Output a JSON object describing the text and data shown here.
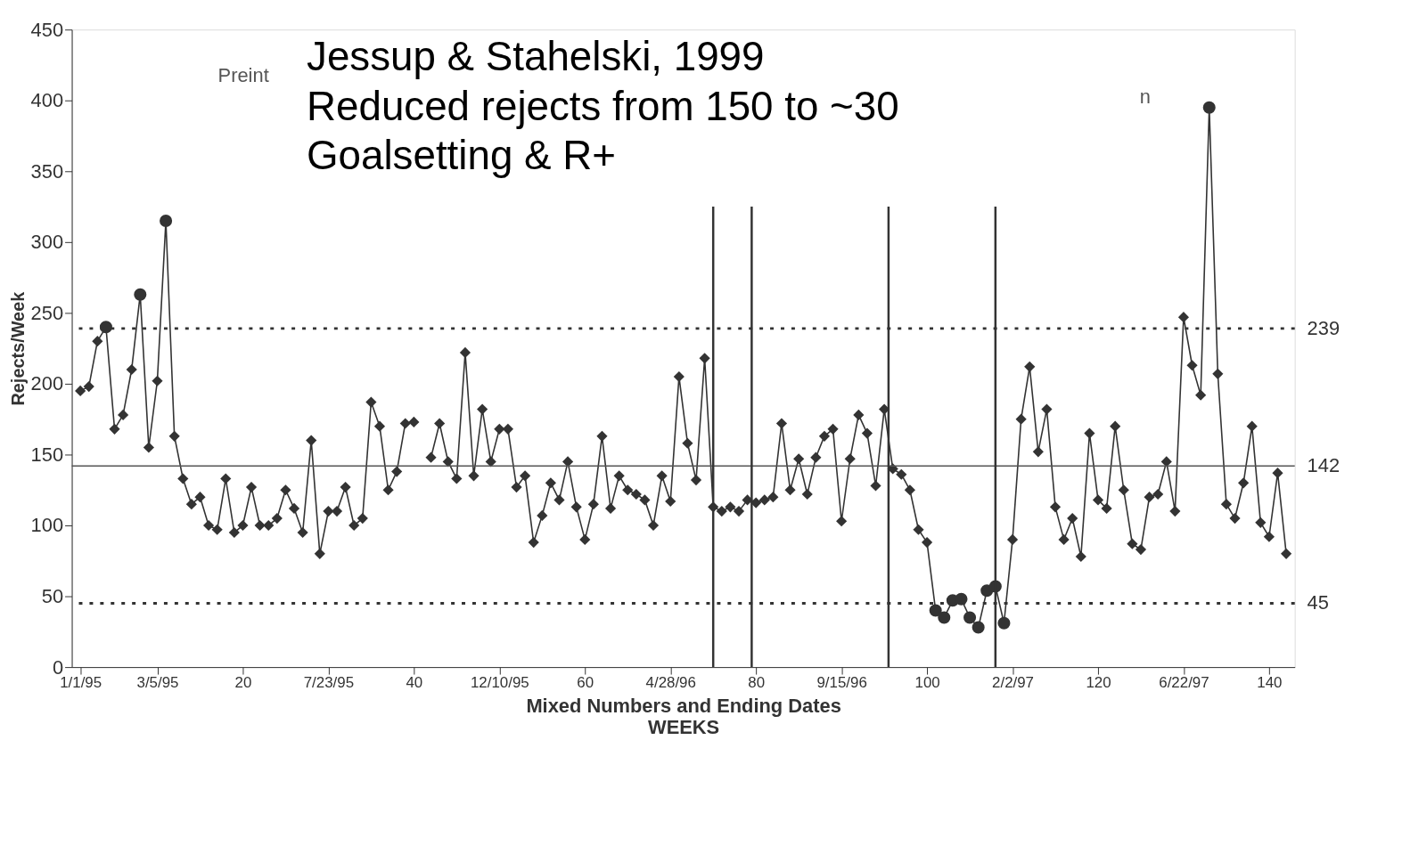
{
  "chart_data": {
    "type": "line",
    "xlabel": "Mixed Numbers and Ending Dates\nWEEKS",
    "ylabel": "Rejects/Week",
    "annotations": [
      "Jessup & Stahelski, 1999",
      "Reduced rejects from 150 to ~30",
      "Goalsetting & R+",
      "Preint",
      "n"
    ],
    "x": [
      1,
      2,
      3,
      4,
      5,
      6,
      7,
      8,
      9,
      10,
      11,
      12,
      13,
      14,
      15,
      16,
      17,
      18,
      19,
      20,
      21,
      22,
      23,
      24,
      25,
      26,
      27,
      28,
      29,
      30,
      31,
      32,
      33,
      34,
      35,
      36,
      37,
      38,
      39,
      40,
      41,
      42,
      43,
      44,
      45,
      46,
      47,
      48,
      49,
      50,
      51,
      52,
      53,
      54,
      55,
      56,
      57,
      58,
      59,
      60,
      61,
      62,
      63,
      64,
      65,
      66,
      67,
      68,
      69,
      70,
      71,
      72,
      73,
      74,
      75,
      76,
      77,
      78,
      79,
      80,
      81,
      82,
      83,
      84,
      85,
      86,
      87,
      88,
      89,
      90,
      91,
      92,
      93,
      94,
      95,
      96,
      97,
      98,
      99,
      100,
      101,
      102,
      103,
      104,
      105,
      106,
      107,
      108,
      109,
      110,
      111,
      112,
      113,
      114,
      115,
      116,
      117,
      118,
      119,
      120,
      121,
      122,
      123,
      124,
      125,
      126,
      127,
      128,
      129,
      130,
      131,
      132,
      133,
      134,
      135,
      136,
      137,
      138,
      139,
      140,
      141,
      142
    ],
    "series": [
      {
        "marker": "none",
        "color": "#333333",
        "values": [
          195,
          198,
          230,
          240,
          168,
          178,
          210,
          263,
          155,
          202,
          315,
          163,
          133,
          115,
          120,
          100,
          97,
          133,
          95,
          100,
          127,
          100,
          100,
          105,
          125,
          112,
          95,
          160,
          80,
          110,
          110,
          127,
          100,
          105,
          187,
          170,
          125,
          138,
          172,
          173,
          null,
          148,
          172,
          145,
          133,
          222,
          135,
          182,
          145,
          168,
          168,
          127,
          135,
          88,
          107,
          130,
          118,
          145,
          113,
          90,
          115,
          163,
          112,
          135,
          125,
          122,
          118,
          100,
          135,
          117,
          205,
          158,
          132,
          218,
          113,
          110,
          113,
          110,
          118,
          116,
          118,
          120,
          172,
          125,
          147,
          122,
          148,
          163,
          168,
          103,
          147,
          178,
          165,
          128,
          182,
          140,
          136,
          125,
          97,
          88,
          40,
          35,
          47,
          48,
          35,
          28,
          54,
          57,
          31,
          90,
          175,
          212,
          152,
          182,
          113,
          90,
          105,
          78,
          165,
          118,
          112,
          170,
          125,
          87,
          83,
          120,
          122,
          145,
          110,
          247,
          213,
          192,
          395,
          207,
          115,
          105,
          130,
          170,
          102,
          92,
          137,
          80
        ]
      },
      {
        "type": "scatter",
        "marker": "diamond",
        "color": "#333333",
        "values": [
          195,
          198,
          230,
          null,
          168,
          178,
          210,
          null,
          155,
          202,
          null,
          163,
          133,
          115,
          120,
          100,
          97,
          133,
          95,
          100,
          127,
          100,
          100,
          105,
          125,
          112,
          95,
          160,
          80,
          110,
          110,
          127,
          100,
          105,
          187,
          170,
          125,
          138,
          172,
          173,
          null,
          148,
          172,
          145,
          133,
          222,
          135,
          182,
          145,
          168,
          168,
          127,
          135,
          88,
          107,
          130,
          118,
          145,
          113,
          90,
          115,
          163,
          112,
          135,
          125,
          122,
          118,
          100,
          135,
          117,
          205,
          158,
          132,
          218,
          113,
          110,
          113,
          110,
          118,
          116,
          118,
          120,
          172,
          125,
          147,
          122,
          148,
          163,
          168,
          103,
          147,
          178,
          165,
          128,
          182,
          140,
          136,
          125,
          97,
          88,
          null,
          null,
          null,
          null,
          null,
          null,
          null,
          null,
          null,
          90,
          175,
          212,
          152,
          182,
          113,
          90,
          105,
          78,
          165,
          118,
          112,
          170,
          125,
          87,
          83,
          120,
          122,
          145,
          110,
          247,
          213,
          192,
          null,
          207,
          115,
          105,
          130,
          170,
          102,
          92,
          137,
          80
        ]
      },
      {
        "type": "scatter",
        "marker": "circle",
        "color": "#333333",
        "values": [
          null,
          null,
          null,
          240,
          null,
          null,
          null,
          263,
          null,
          null,
          315,
          null,
          null,
          null,
          null,
          null,
          null,
          null,
          null,
          null,
          null,
          null,
          null,
          null,
          null,
          null,
          null,
          null,
          null,
          null,
          null,
          null,
          null,
          null,
          null,
          null,
          null,
          null,
          null,
          null,
          null,
          null,
          null,
          null,
          null,
          null,
          null,
          null,
          null,
          null,
          null,
          null,
          null,
          null,
          null,
          null,
          null,
          null,
          null,
          null,
          null,
          null,
          null,
          null,
          null,
          null,
          null,
          null,
          null,
          null,
          null,
          null,
          null,
          null,
          null,
          null,
          null,
          null,
          null,
          null,
          null,
          null,
          null,
          null,
          null,
          null,
          null,
          null,
          null,
          null,
          null,
          null,
          null,
          null,
          null,
          null,
          null,
          null,
          null,
          null,
          40,
          35,
          47,
          48,
          35,
          28,
          54,
          57,
          31,
          null,
          null,
          null,
          null,
          null,
          null,
          null,
          null,
          null,
          null,
          null,
          null,
          null,
          null,
          null,
          null,
          null,
          null,
          null,
          null,
          null,
          null,
          null,
          395,
          null,
          null,
          null,
          null,
          null,
          null,
          null,
          null,
          null
        ]
      }
    ],
    "xlim": [
      0,
      143
    ],
    "xticks": [
      {
        "value": 1,
        "label": "1/1/95"
      },
      {
        "value": 10,
        "label": "3/5/95"
      },
      20,
      {
        "value": 30,
        "label": "7/23/95"
      },
      40,
      {
        "value": 50,
        "label": "12/10/95"
      },
      60,
      {
        "value": 70,
        "label": "4/28/96"
      },
      80,
      {
        "value": 90,
        "label": "9/15/96"
      },
      100,
      {
        "value": 110,
        "label": "2/2/97"
      },
      120,
      {
        "value": 130,
        "label": "6/22/97"
      },
      140
    ],
    "ylim": [
      0,
      450
    ],
    "yticks": [
      0,
      50,
      100,
      150,
      200,
      250,
      300,
      350,
      400,
      450
    ],
    "ref_lines": [
      {
        "axis": "y",
        "value": 239,
        "label": "239",
        "line_style": "dotted",
        "color": "#333333"
      },
      {
        "axis": "y",
        "value": 142,
        "label": "142",
        "line_style": "solid",
        "color": "#555555"
      },
      {
        "axis": "y",
        "value": 45,
        "label": "45",
        "line_style": "dotted",
        "color": "#333333"
      },
      {
        "axis": "x",
        "value": 75,
        "line_style": "solid",
        "color": "#333333"
      },
      {
        "axis": "x",
        "value": 79.5,
        "line_style": "solid",
        "color": "#333333"
      },
      {
        "axis": "x",
        "value": 95.5,
        "line_style": "solid",
        "color": "#333333"
      },
      {
        "axis": "x",
        "value": 108,
        "line_style": "solid",
        "color": "#333333"
      }
    ],
    "grid": false
  }
}
